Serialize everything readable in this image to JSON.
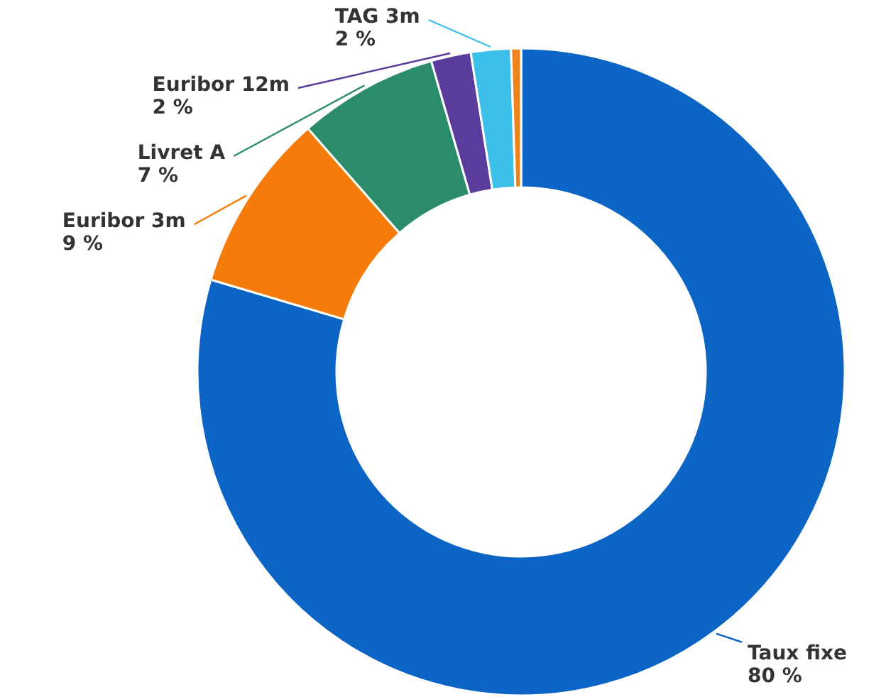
{
  "chart_data": {
    "type": "donut",
    "categories": [
      "Taux fixe",
      "Euribor 3m",
      "Livret A",
      "Euribor 12m",
      "TAG 3m",
      null
    ],
    "values": [
      80,
      9,
      7,
      2,
      2,
      0.5
    ],
    "colors": [
      "#0c64c4",
      "#f57c0a",
      "#2b8c6c",
      "#5a3c9c",
      "#3cc0ea",
      "#f0841c"
    ],
    "value_labels": [
      "80 %",
      "9 %",
      "7 %",
      "2 %",
      "2 %",
      null
    ]
  }
}
